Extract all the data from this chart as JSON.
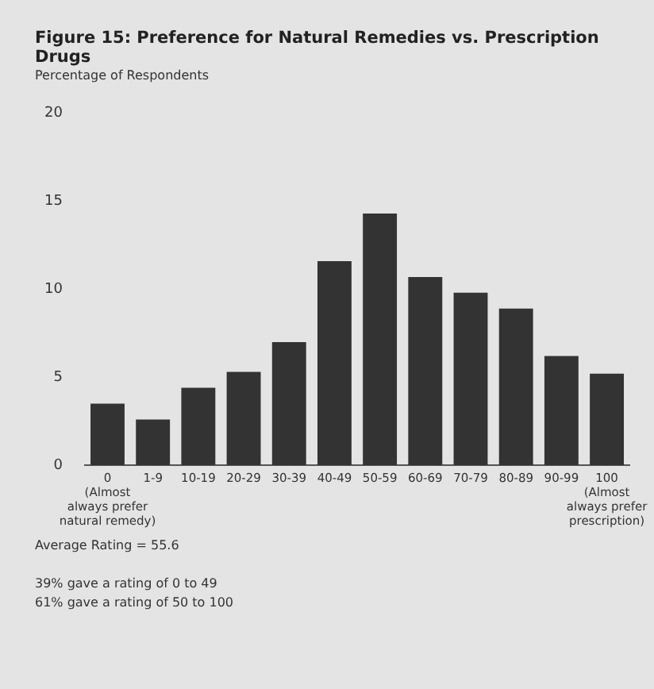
{
  "chart_data": {
    "type": "bar",
    "title": "Figure 15: Preference for Natural Remedies vs. Prescription Drugs",
    "ylabel": "Percentage of Respondents",
    "categories": [
      "0\n(Almost\nalways prefer\nnatural remedy)",
      "1-9",
      "10-19",
      "20-29",
      "30-39",
      "40-49",
      "50-59",
      "60-69",
      "70-79",
      "80-89",
      "90-99",
      "100\n(Almost\nalways prefer\nprescription)"
    ],
    "values": [
      3.5,
      2.6,
      4.4,
      5.3,
      7.0,
      11.6,
      14.3,
      10.7,
      9.8,
      8.9,
      6.2,
      5.2
    ],
    "color": "#333333",
    "ylim": [
      0,
      20
    ],
    "yticks": [
      0,
      5,
      10,
      15,
      20
    ],
    "grid": false,
    "legend": false,
    "annotations": [
      "Average Rating = 55.6",
      "39% gave a rating of 0 to 49\n61% gave a rating of 50 to 100"
    ]
  }
}
